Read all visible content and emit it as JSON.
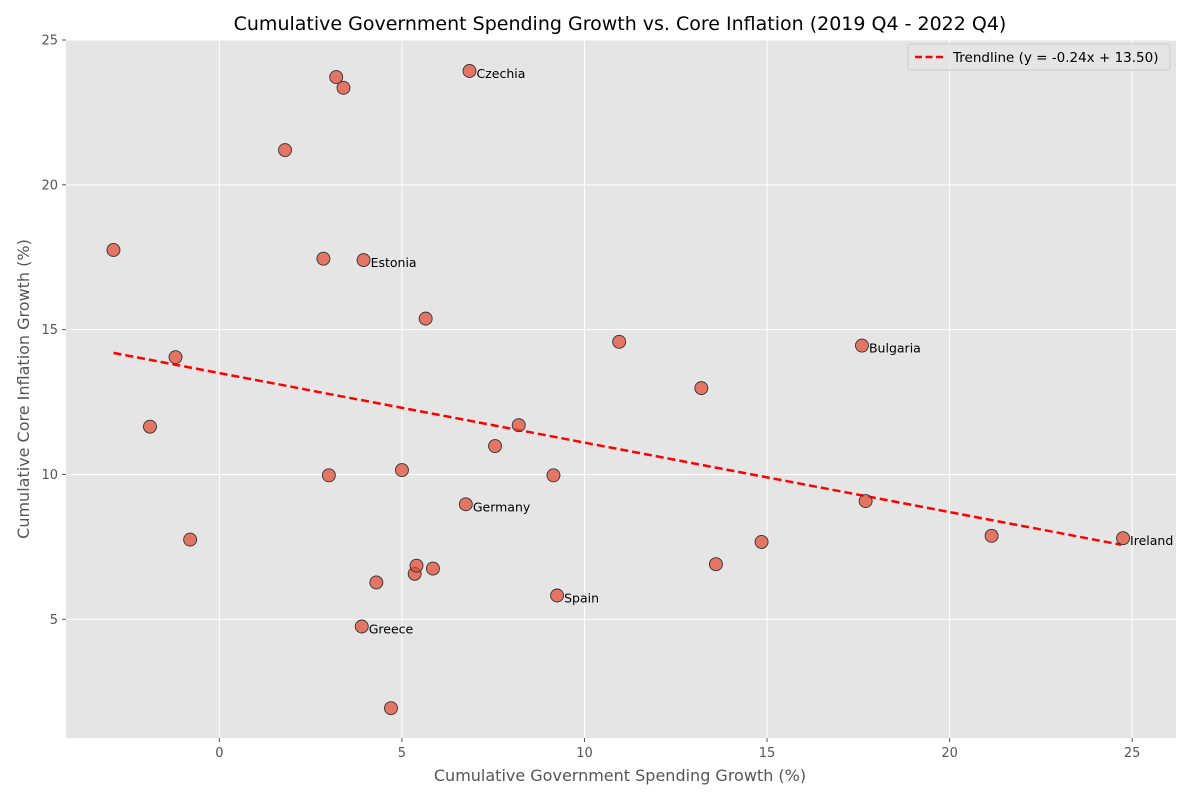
{
  "chart_data": {
    "type": "scatter",
    "title": "Cumulative Government Spending Growth vs. Core Inflation (2019 Q4 - 2022 Q4)",
    "xlabel": "Cumulative Government Spending Growth (%)",
    "ylabel": "Cumulative Core Inflation Growth (%)",
    "xlim": [
      -4.2,
      26.2
    ],
    "ylim": [
      0.9,
      25.0
    ],
    "xticks": [
      0,
      5,
      10,
      15,
      20,
      25
    ],
    "yticks": [
      5,
      10,
      15,
      20,
      25
    ],
    "grid": true,
    "legend_position": "top-right",
    "colors": {
      "background": "#e5e5e5",
      "grid": "#ffffff",
      "point_fill": "#e24a33",
      "point_edge": "#333333",
      "trendline": "#ff0000"
    },
    "trendline": {
      "label": "Trendline (y = -0.24x + 13.50)",
      "slope": -0.24,
      "intercept": 13.5,
      "x_range": [
        -2.9,
        24.7
      ]
    },
    "points": [
      {
        "x": -2.9,
        "y": 17.75,
        "label": ""
      },
      {
        "x": -1.9,
        "y": 11.65,
        "label": ""
      },
      {
        "x": -1.2,
        "y": 14.05,
        "label": ""
      },
      {
        "x": -0.8,
        "y": 7.75,
        "label": ""
      },
      {
        "x": 1.8,
        "y": 21.2,
        "label": ""
      },
      {
        "x": 2.85,
        "y": 17.45,
        "label": ""
      },
      {
        "x": 3.0,
        "y": 9.97,
        "label": ""
      },
      {
        "x": 3.2,
        "y": 23.72,
        "label": ""
      },
      {
        "x": 3.4,
        "y": 23.35,
        "label": ""
      },
      {
        "x": 3.9,
        "y": 4.75,
        "label": "Greece"
      },
      {
        "x": 3.95,
        "y": 17.4,
        "label": "Estonia"
      },
      {
        "x": 4.3,
        "y": 6.27,
        "label": ""
      },
      {
        "x": 4.7,
        "y": 1.93,
        "label": ""
      },
      {
        "x": 5.0,
        "y": 10.15,
        "label": ""
      },
      {
        "x": 5.35,
        "y": 6.57,
        "label": ""
      },
      {
        "x": 5.4,
        "y": 6.85,
        "label": ""
      },
      {
        "x": 5.65,
        "y": 15.38,
        "label": ""
      },
      {
        "x": 5.85,
        "y": 6.75,
        "label": ""
      },
      {
        "x": 6.75,
        "y": 8.97,
        "label": "Germany"
      },
      {
        "x": 6.85,
        "y": 23.93,
        "label": "Czechia"
      },
      {
        "x": 7.55,
        "y": 10.98,
        "label": ""
      },
      {
        "x": 8.2,
        "y": 11.7,
        "label": ""
      },
      {
        "x": 9.15,
        "y": 9.97,
        "label": ""
      },
      {
        "x": 9.25,
        "y": 5.82,
        "label": "Spain"
      },
      {
        "x": 10.95,
        "y": 14.58,
        "label": ""
      },
      {
        "x": 13.2,
        "y": 12.98,
        "label": ""
      },
      {
        "x": 13.6,
        "y": 6.9,
        "label": ""
      },
      {
        "x": 14.85,
        "y": 7.67,
        "label": ""
      },
      {
        "x": 17.6,
        "y": 14.45,
        "label": "Bulgaria"
      },
      {
        "x": 17.7,
        "y": 9.08,
        "label": ""
      },
      {
        "x": 21.15,
        "y": 7.88,
        "label": ""
      },
      {
        "x": 24.75,
        "y": 7.8,
        "label": "Ireland"
      }
    ]
  }
}
